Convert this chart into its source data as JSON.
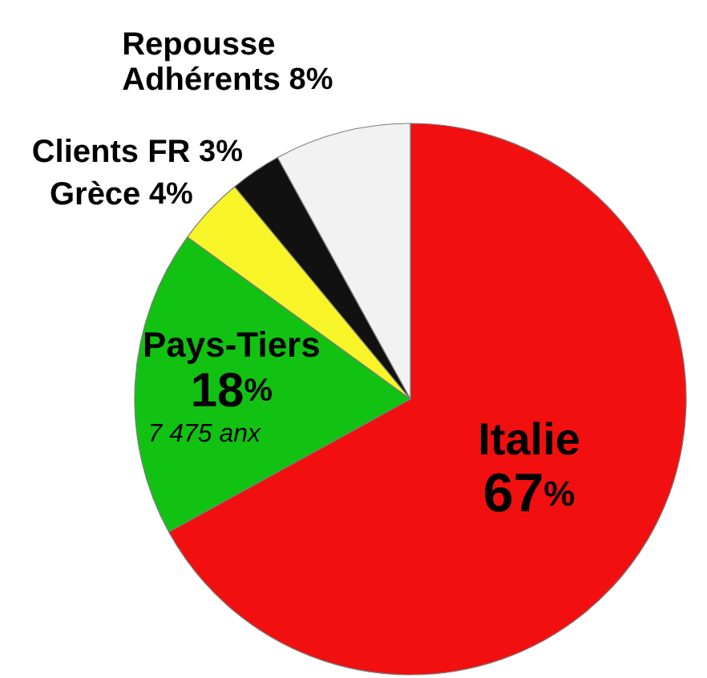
{
  "chart_data": {
    "type": "pie",
    "categories": [
      "Italie",
      "Pays-Tiers",
      "Grèce",
      "Clients FR",
      "Repousse Adhérents"
    ],
    "values": [
      67,
      18,
      4,
      3,
      8
    ],
    "colors": [
      "#f20f0f",
      "#12c212",
      "#f7f528",
      "#111111",
      "#f2f2f2"
    ],
    "value_labels": [
      "67%",
      "18%",
      "4%",
      "3%",
      "8%"
    ],
    "annotations": [
      {
        "text": "7 475 anx",
        "x": "Pays-Tiers"
      }
    ]
  }
}
